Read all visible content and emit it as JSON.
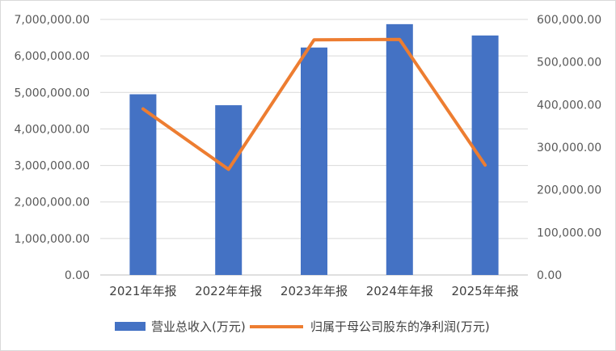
{
  "chart_data": {
    "type": "bar+line",
    "title": "",
    "categories": [
      "2021年年报",
      "2022年年报",
      "2023年年报",
      "2024年年报",
      "2025年年报"
    ],
    "series": [
      {
        "name": "营业总收入(万元)",
        "type": "bar",
        "axis": "left",
        "color": "#4472C4",
        "values": [
          4950000,
          4650000,
          6230000,
          6870000,
          6560000
        ]
      },
      {
        "name": "归属于母公司股东的净利润(万元)",
        "type": "line",
        "axis": "right",
        "color": "#ED7D31",
        "values": [
          390000,
          248000,
          552000,
          553000,
          258000
        ]
      }
    ],
    "y_left": {
      "ylim": [
        0,
        7000000
      ],
      "ticks": [
        "0.00",
        "1,000,000.00",
        "2,000,000.00",
        "3,000,000.00",
        "4,000,000.00",
        "5,000,000.00",
        "6,000,000.00",
        "7,000,000.00"
      ]
    },
    "y_right": {
      "ylim": [
        0,
        600000
      ],
      "ticks": [
        "0.00",
        "100,000.00",
        "200,000.00",
        "300,000.00",
        "400,000.00",
        "500,000.00",
        "600,000.00"
      ]
    },
    "grid": true,
    "legend": "bottom"
  }
}
